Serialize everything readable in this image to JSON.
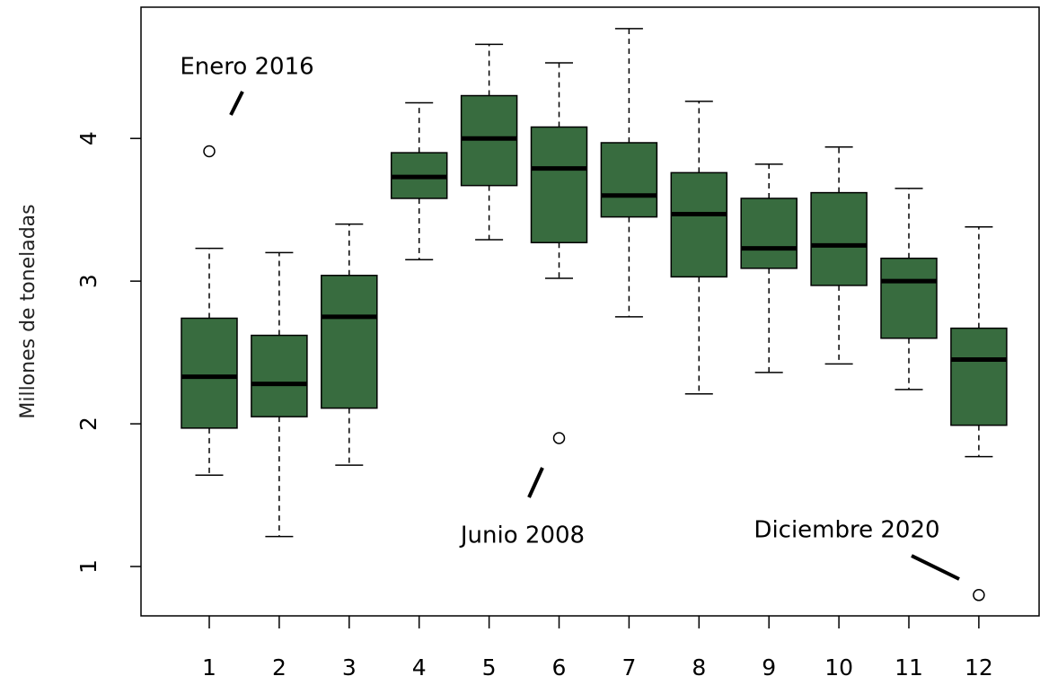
{
  "chart_data": {
    "type": "boxplot",
    "y_label": "Millones de toneladas",
    "categories": [
      "1",
      "2",
      "3",
      "4",
      "5",
      "6",
      "7",
      "8",
      "9",
      "10",
      "11",
      "12"
    ],
    "color": "#386c3f",
    "ylim": [
      0.654,
      4.92
    ],
    "yticks": [
      1,
      2,
      3,
      4
    ],
    "boxes": [
      {
        "whisker_low": 1.64,
        "q1": 1.97,
        "median": 2.33,
        "q3": 2.74,
        "whisker_high": 3.23,
        "outliers": [
          3.91
        ]
      },
      {
        "whisker_low": 1.21,
        "q1": 2.05,
        "median": 2.28,
        "q3": 2.62,
        "whisker_high": 3.2,
        "outliers": []
      },
      {
        "whisker_low": 1.71,
        "q1": 2.11,
        "median": 2.75,
        "q3": 3.04,
        "whisker_high": 3.4,
        "outliers": []
      },
      {
        "whisker_low": 3.15,
        "q1": 3.58,
        "median": 3.73,
        "q3": 3.9,
        "whisker_high": 4.25,
        "outliers": []
      },
      {
        "whisker_low": 3.29,
        "q1": 3.67,
        "median": 4.0,
        "q3": 4.3,
        "whisker_high": 4.66,
        "outliers": []
      },
      {
        "whisker_low": 3.02,
        "q1": 3.27,
        "median": 3.79,
        "q3": 4.08,
        "whisker_high": 4.53,
        "outliers": [
          1.9
        ]
      },
      {
        "whisker_low": 2.75,
        "q1": 3.45,
        "median": 3.6,
        "q3": 3.97,
        "whisker_high": 4.77,
        "outliers": []
      },
      {
        "whisker_low": 2.21,
        "q1": 3.03,
        "median": 3.47,
        "q3": 3.76,
        "whisker_high": 4.26,
        "outliers": []
      },
      {
        "whisker_low": 2.36,
        "q1": 3.09,
        "median": 3.23,
        "q3": 3.58,
        "whisker_high": 3.82,
        "outliers": []
      },
      {
        "whisker_low": 2.42,
        "q1": 2.97,
        "median": 3.25,
        "q3": 3.62,
        "whisker_high": 3.94,
        "outliers": []
      },
      {
        "whisker_low": 2.24,
        "q1": 2.6,
        "median": 3.0,
        "q3": 3.16,
        "whisker_high": 3.65,
        "outliers": []
      },
      {
        "whisker_low": 1.77,
        "q1": 1.99,
        "median": 2.45,
        "q3": 2.67,
        "whisker_high": 3.38,
        "outliers": [
          0.8
        ]
      }
    ],
    "annotations": [
      "Enero 2016",
      "Junio 2008",
      "Diciembre 2020"
    ]
  }
}
